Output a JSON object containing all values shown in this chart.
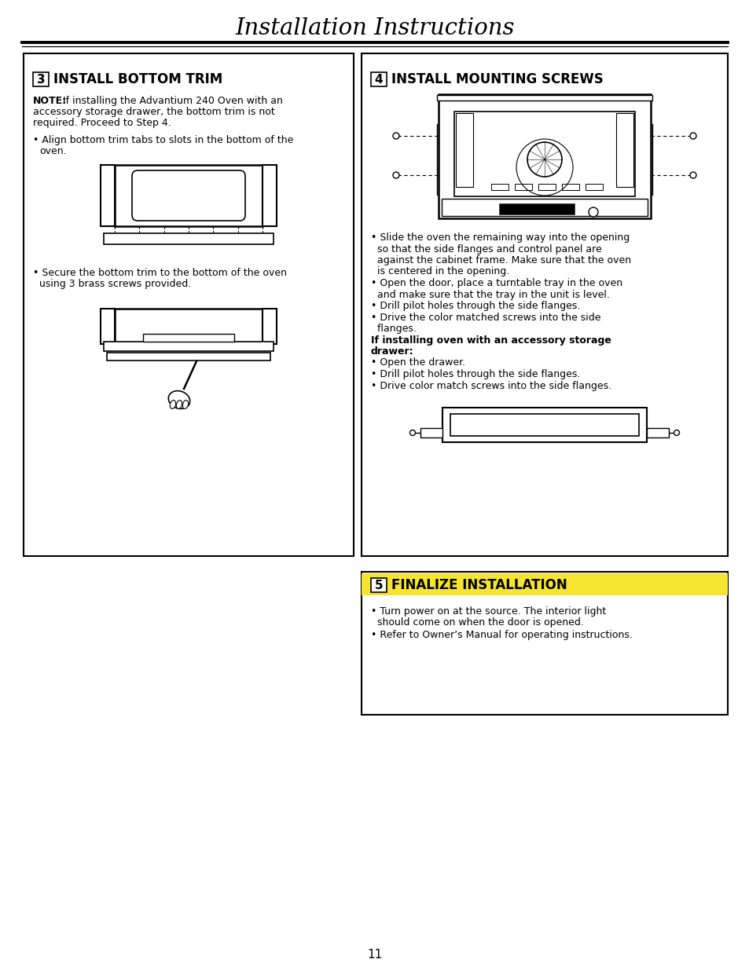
{
  "title": "Installation Instructions",
  "page_number": "11",
  "bg": "#ffffff",
  "step3_num": "3",
  "step3_head": "INSTALL BOTTOM TRIM",
  "step4_num": "4",
  "step4_head": "INSTALL MOUNTING SCREWS",
  "step5_num": "5",
  "step5_head": "FINALIZE INSTALLATION",
  "step3_note_bold": "NOTE:",
  "step3_note_rest": " If installing the Advantium 240 Oven with an",
  "step3_note_line2": "accessory storage drawer, the bottom trim is not",
  "step3_note_line3": "required. Proceed to Step 4.",
  "step3_b1_l1": "• Align bottom trim tabs to slots in the bottom of the",
  "step3_b1_l2": "  oven.",
  "step3_b2_l1": "• Secure the bottom trim to the bottom of the oven",
  "step3_b2_l2": "  using 3 brass screws provided.",
  "step4_lines": [
    [
      "• Slide the oven the remaining way into the opening",
      false
    ],
    [
      "  so that the side flanges and control panel are",
      false
    ],
    [
      "  against the cabinet frame. Make sure that the oven",
      false
    ],
    [
      "  is centered in the opening.",
      false
    ],
    [
      "• Open the door, place a turntable tray in the oven",
      false
    ],
    [
      "  and make sure that the tray in the unit is level.",
      false
    ],
    [
      "• Drill pilot holes through the side flanges.",
      false
    ],
    [
      "• Drive the color matched screws into the side",
      false
    ],
    [
      "  flanges.",
      false
    ],
    [
      "If installing oven with an accessory storage",
      true
    ],
    [
      "drawer:",
      true
    ],
    [
      "• Open the drawer.",
      false
    ],
    [
      "• Drill pilot holes through the side flanges.",
      false
    ],
    [
      "• Drive color match screws into the side flanges.",
      false
    ]
  ],
  "step5_b1l1": "• Turn power on at the source. The interior light",
  "step5_b1l2": "  should come on when the door is opened.",
  "step5_b2": "• Refer to Owner’s Manual for operating instructions."
}
